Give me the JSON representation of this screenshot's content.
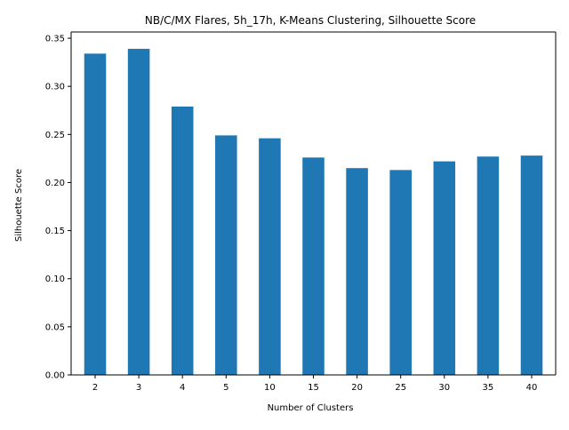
{
  "chart_data": {
    "type": "bar",
    "title": "NB/C/MX Flares, 5h_17h, K-Means Clustering, Silhouette Score",
    "xlabel": "Number of Clusters",
    "ylabel": "Silhouette Score",
    "categories": [
      "2",
      "3",
      "4",
      "5",
      "10",
      "15",
      "20",
      "25",
      "30",
      "35",
      "40"
    ],
    "values": [
      0.334,
      0.339,
      0.279,
      0.249,
      0.246,
      0.226,
      0.215,
      0.213,
      0.222,
      0.227,
      0.228
    ],
    "ylim": [
      0,
      0.35
    ],
    "yticks": [
      "0.00",
      "0.05",
      "0.10",
      "0.15",
      "0.20",
      "0.25",
      "0.30",
      "0.35"
    ],
    "bar_color": "#1f77b4",
    "grid": false,
    "legend": "none"
  }
}
